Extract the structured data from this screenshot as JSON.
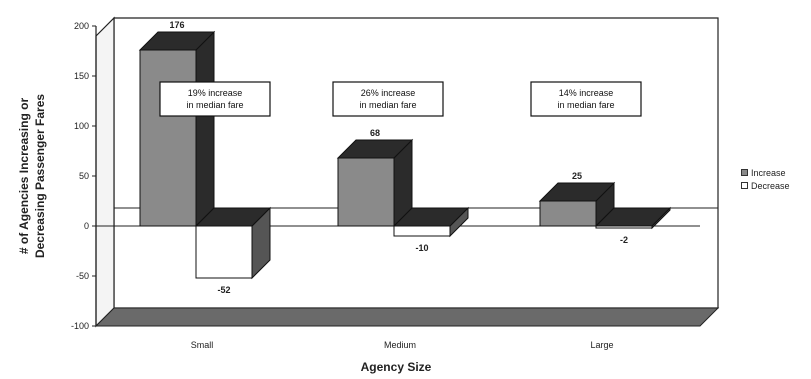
{
  "chart_data": {
    "type": "bar",
    "title": "",
    "xlabel": "Agency Size",
    "ylabel": "# of Agencies Increasing or Decreasing Passenger Fares",
    "categories": [
      "Small",
      "Medium",
      "Large"
    ],
    "series": [
      {
        "name": "Increase",
        "values": [
          176,
          68,
          25
        ],
        "color": "#8a8a8a"
      },
      {
        "name": "Decrease",
        "values": [
          -52,
          -10,
          -2
        ],
        "color": "#ffffff"
      }
    ],
    "data_labels": {
      "Increase": [
        "176",
        "68",
        "25"
      ],
      "Decrease": [
        "-52",
        "-10",
        "-2"
      ]
    },
    "ylim": [
      -100,
      200
    ],
    "yticks": [
      -100,
      -50,
      0,
      50,
      100,
      150,
      200
    ],
    "annotations": [
      {
        "line1": "19% increase",
        "line2": "in median fare"
      },
      {
        "line1": "26% increase",
        "line2": "in median fare"
      },
      {
        "line1": "14% increase",
        "line2": "in median fare"
      }
    ],
    "legend_position": "right",
    "three_d": true,
    "colors": {
      "floor": "#6a6a6a",
      "wall": "#ffffff",
      "dark_top": "#2b2b2b",
      "shade": "#555555"
    }
  }
}
